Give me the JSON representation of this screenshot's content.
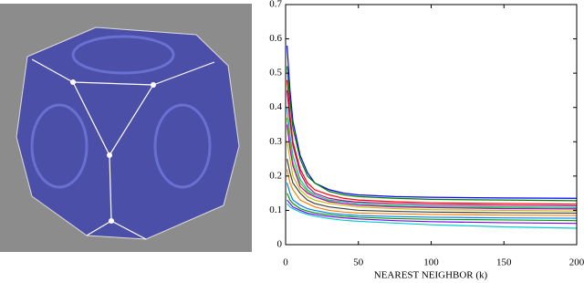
{
  "chart_data": {
    "type": "line",
    "xlabel": "NEAREST NEIGHBOR (k)",
    "x": [
      1,
      3,
      5,
      10,
      15,
      20,
      30,
      40,
      50,
      75,
      100,
      150,
      200
    ],
    "xlim": [
      0,
      200
    ],
    "xticks": [
      0,
      50,
      100,
      150,
      200
    ],
    "ylim": [
      0,
      0.7
    ],
    "yticks": [
      0,
      0.1,
      0.2,
      0.3,
      0.4,
      0.5,
      0.6,
      0.7
    ],
    "series": [
      {
        "color": "#0000ff",
        "values": [
          0.58,
          0.45,
          0.36,
          0.26,
          0.21,
          0.18,
          0.16,
          0.15,
          0.145,
          0.14,
          0.138,
          0.136,
          0.135
        ]
      },
      {
        "color": "#008000",
        "values": [
          0.52,
          0.42,
          0.34,
          0.25,
          0.2,
          0.18,
          0.155,
          0.145,
          0.14,
          0.135,
          0.132,
          0.13,
          0.128
        ]
      },
      {
        "color": "#ff0000",
        "values": [
          0.48,
          0.38,
          0.3,
          0.22,
          0.18,
          0.16,
          0.145,
          0.135,
          0.13,
          0.125,
          0.122,
          0.12,
          0.118
        ]
      },
      {
        "color": "#cc0066",
        "values": [
          0.45,
          0.36,
          0.29,
          0.21,
          0.17,
          0.15,
          0.135,
          0.128,
          0.124,
          0.12,
          0.117,
          0.115,
          0.113
        ]
      },
      {
        "color": "#00bfbf",
        "values": [
          0.4,
          0.32,
          0.26,
          0.19,
          0.16,
          0.145,
          0.13,
          0.125,
          0.12,
          0.115,
          0.112,
          0.11,
          0.108
        ]
      },
      {
        "color": "#66cc00",
        "values": [
          0.37,
          0.3,
          0.24,
          0.18,
          0.155,
          0.14,
          0.127,
          0.12,
          0.116,
          0.112,
          0.109,
          0.107,
          0.105
        ]
      },
      {
        "color": "#bf00bf",
        "values": [
          0.35,
          0.28,
          0.23,
          0.17,
          0.15,
          0.14,
          0.125,
          0.12,
          0.115,
          0.11,
          0.108,
          0.105,
          0.104
        ]
      },
      {
        "color": "#bfbf00",
        "values": [
          0.3,
          0.25,
          0.2,
          0.16,
          0.14,
          0.13,
          0.12,
          0.115,
          0.11,
          0.105,
          0.102,
          0.1,
          0.098
        ]
      },
      {
        "color": "#404040",
        "values": [
          0.25,
          0.21,
          0.18,
          0.15,
          0.13,
          0.12,
          0.11,
          0.105,
          0.1,
          0.097,
          0.095,
          0.093,
          0.092
        ]
      },
      {
        "color": "#ff8000",
        "values": [
          0.22,
          0.18,
          0.16,
          0.13,
          0.12,
          0.11,
          0.1,
          0.095,
          0.092,
          0.09,
          0.088,
          0.086,
          0.085
        ]
      },
      {
        "color": "#0080ff",
        "values": [
          0.18,
          0.15,
          0.13,
          0.115,
          0.105,
          0.1,
          0.092,
          0.088,
          0.085,
          0.082,
          0.08,
          0.078,
          0.077
        ]
      },
      {
        "color": "#00a000",
        "values": [
          0.15,
          0.13,
          0.12,
          0.105,
          0.098,
          0.093,
          0.087,
          0.083,
          0.08,
          0.076,
          0.074,
          0.072,
          0.07
        ]
      },
      {
        "color": "#8000ff",
        "values": [
          0.13,
          0.12,
          0.11,
          0.1,
          0.092,
          0.088,
          0.082,
          0.078,
          0.075,
          0.07,
          0.067,
          0.064,
          0.062
        ]
      },
      {
        "color": "#00cccc",
        "values": [
          0.12,
          0.11,
          0.105,
          0.095,
          0.088,
          0.083,
          0.076,
          0.071,
          0.068,
          0.063,
          0.058,
          0.052,
          0.048
        ]
      }
    ]
  }
}
